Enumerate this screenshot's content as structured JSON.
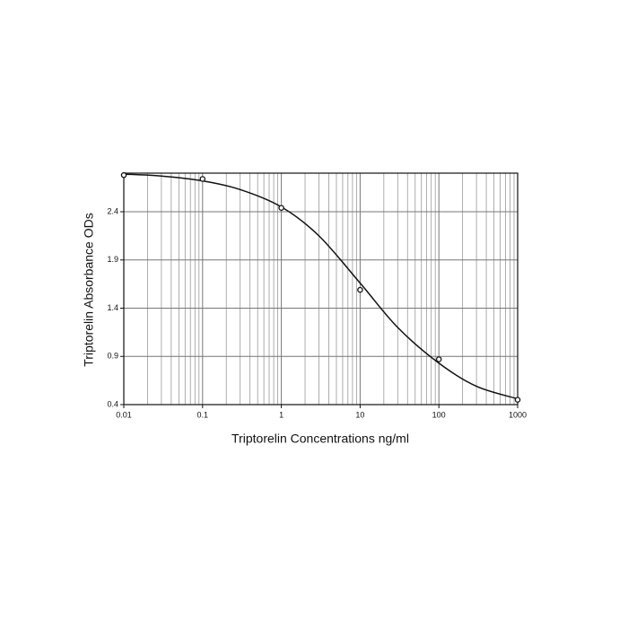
{
  "chart_data": {
    "type": "scatter",
    "x_label": "Triptorelin Concentrations ng/ml",
    "y_label": "Triptorelin Absorbance ODs",
    "x_log": true,
    "grid": true,
    "color": "#111111",
    "x": [
      0.01,
      0.1,
      1,
      10,
      100,
      1000
    ],
    "values": [
      2.78,
      2.74,
      2.44,
      1.59,
      0.87,
      0.45
    ],
    "curve": {
      "x": [
        0.01,
        0.03,
        0.1,
        0.3,
        1,
        3,
        10,
        30,
        100,
        300,
        1000
      ],
      "values": [
        2.79,
        2.77,
        2.72,
        2.63,
        2.45,
        2.15,
        1.66,
        1.2,
        0.83,
        0.59,
        0.46
      ]
    },
    "xlim": [
      0.01,
      1000
    ],
    "xticks": [
      0.01,
      0.1,
      1,
      10,
      100,
      1000
    ],
    "ylim": [
      0.4,
      2.8
    ],
    "yticks": [
      0.4,
      0.9,
      1.4,
      1.9,
      2.4
    ]
  }
}
